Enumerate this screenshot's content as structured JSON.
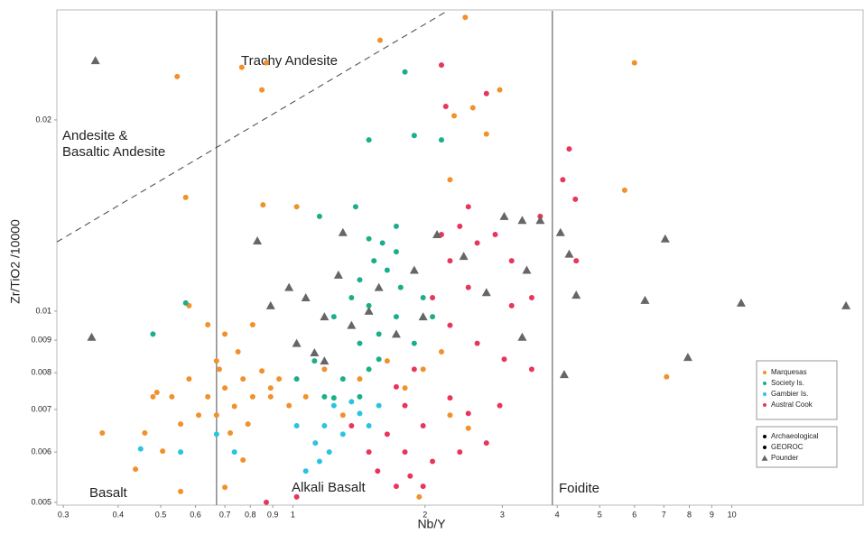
{
  "chart_data": {
    "type": "scatter",
    "x_label": "Nb/Y",
    "y_label": "Zr/TiO2 /10000",
    "xlog": true,
    "ylog": true,
    "xlim": [
      0.29,
      20
    ],
    "ylim": [
      0.00495,
      0.0297
    ],
    "xticks": [
      0.3,
      0.4,
      0.5,
      0.6,
      0.7,
      0.8,
      0.9,
      1,
      2,
      3,
      4,
      5,
      6,
      7,
      8,
      9,
      10
    ],
    "yticks": [
      0.005,
      0.006,
      0.007,
      0.008,
      0.009,
      0.01,
      0.02
    ],
    "region_labels": [
      "Trachy Andesite",
      "Andesite &",
      "Basaltic Andesite",
      "Basalt",
      "Alkali Basalt",
      "Foidite"
    ],
    "reference_lines": [
      {
        "x": [
          0.67,
          0.67
        ],
        "y": [
          0.00495,
          0.0297
        ],
        "dashed": false
      },
      {
        "x": [
          3.9,
          3.9
        ],
        "y": [
          0.00495,
          0.0297
        ],
        "dashed": false
      },
      {
        "x": [
          0.29,
          2.25
        ],
        "y": [
          0.01285,
          0.0297
        ],
        "dashed": true
      }
    ],
    "shape_legend": [
      "Archaeological",
      "GEOROC"
    ],
    "series": [
      {
        "name": "Marquesas",
        "color": "#f0912c",
        "marker": "circle",
        "x": [
          0.545,
          0.765,
          0.87,
          0.85,
          1.58,
          2.47,
          6.0,
          0.57,
          5.7,
          7.1,
          0.855,
          1.02,
          2.33,
          2.57,
          2.96,
          2.76,
          2.28,
          0.7,
          0.77,
          0.736,
          0.81,
          0.89,
          0.64,
          0.61,
          0.58,
          0.67,
          0.75,
          0.85,
          0.93,
          0.67,
          0.72,
          0.555,
          0.53,
          0.505,
          0.46,
          0.438,
          0.48,
          0.64,
          0.7,
          0.81,
          0.98,
          1.07,
          1.18,
          1.42,
          1.64,
          1.8,
          1.98,
          2.18,
          1.3,
          0.77,
          0.7,
          0.555,
          0.368,
          0.49,
          0.58,
          0.89,
          0.68,
          0.79,
          2.51,
          2.28,
          1.94
        ],
        "values": [
          0.0234,
          0.0242,
          0.0246,
          0.0223,
          0.0267,
          0.029,
          0.0246,
          0.0151,
          0.0155,
          0.00788,
          0.0147,
          0.0146,
          0.0203,
          0.0209,
          0.0223,
          0.019,
          0.0161,
          0.00757,
          0.00782,
          0.00708,
          0.00733,
          0.00757,
          0.00733,
          0.00686,
          0.00782,
          0.00835,
          0.00863,
          0.00805,
          0.00782,
          0.00686,
          0.00643,
          0.00664,
          0.00733,
          0.00602,
          0.00643,
          0.00564,
          0.00733,
          0.00952,
          0.0092,
          0.00952,
          0.0071,
          0.00733,
          0.0081,
          0.00782,
          0.00835,
          0.00757,
          0.0081,
          0.00863,
          0.00686,
          0.00583,
          0.00528,
          0.0052,
          0.00643,
          0.00745,
          0.0102,
          0.00733,
          0.0081,
          0.00664,
          0.00654,
          0.00686,
          0.0051
        ]
      },
      {
        "name": "Society Is.",
        "color": "#1aae8a",
        "marker": "circle",
        "x": [
          1.89,
          1.8,
          1.49,
          2.18,
          1.49,
          1.6,
          1.72,
          1.53,
          1.64,
          1.76,
          1.42,
          1.36,
          1.49,
          1.24,
          1.42,
          1.57,
          1.72,
          1.12,
          1.3,
          1.49,
          1.18,
          1.42,
          1.02,
          1.89,
          1.98,
          2.08,
          1.72,
          1.57,
          1.24,
          0.48,
          0.57,
          1.15,
          1.39
        ],
        "values": [
          0.0189,
          0.0238,
          0.0186,
          0.0186,
          0.013,
          0.0128,
          0.0124,
          0.012,
          0.0116,
          0.0109,
          0.0112,
          0.0105,
          0.0102,
          0.0098,
          0.0089,
          0.0092,
          0.0098,
          0.00835,
          0.00782,
          0.0081,
          0.00733,
          0.00733,
          0.00782,
          0.0089,
          0.0105,
          0.0098,
          0.0136,
          0.0084,
          0.0073,
          0.0092,
          0.0103,
          0.0141,
          0.0146
        ]
      },
      {
        "name": "Gambier Is.",
        "color": "#2bc4e0",
        "marker": "circle",
        "x": [
          0.45,
          0.555,
          0.67,
          0.736,
          1.125,
          1.18,
          1.24,
          1.3,
          1.42,
          1.07,
          1.21,
          1.36,
          1.49,
          1.02,
          1.15,
          1.57
        ],
        "values": [
          0.00607,
          0.006,
          0.0064,
          0.006,
          0.0062,
          0.0066,
          0.0071,
          0.0064,
          0.0069,
          0.0056,
          0.006,
          0.0072,
          0.0066,
          0.0066,
          0.0058,
          0.0071
        ]
      },
      {
        "name": "Austral Cook",
        "color": "#e8365a",
        "marker": "circle",
        "x": [
          2.18,
          2.23,
          2.76,
          4.26,
          4.12,
          4.4,
          4.42,
          1.85,
          1.02,
          0.87,
          2.18,
          2.4,
          2.63,
          2.28,
          2.51,
          2.89,
          3.15,
          3.5,
          2.08,
          2.28,
          2.63,
          3.03,
          3.5,
          1.8,
          1.98,
          1.64,
          1.49,
          1.36,
          2.28,
          2.51,
          2.76,
          2.4,
          2.08,
          1.8,
          1.72,
          1.56,
          1.89,
          3.15,
          2.96,
          3.66,
          2.51,
          1.72,
          1.98
        ],
        "values": [
          0.0244,
          0.021,
          0.022,
          0.018,
          0.0161,
          0.015,
          0.012,
          0.0055,
          0.0051,
          0.005,
          0.0132,
          0.0136,
          0.0128,
          0.012,
          0.0109,
          0.0132,
          0.012,
          0.0105,
          0.0105,
          0.0095,
          0.0089,
          0.0084,
          0.0081,
          0.0071,
          0.0066,
          0.0064,
          0.006,
          0.0066,
          0.0073,
          0.0069,
          0.0062,
          0.006,
          0.0058,
          0.006,
          0.0076,
          0.0056,
          0.0081,
          0.0102,
          0.0071,
          0.0141,
          0.0146,
          0.0053,
          0.0053
        ]
      },
      {
        "name": "Pounder",
        "color": "#666666",
        "marker": "triangle",
        "x": [
          0.355,
          0.348,
          0.83,
          1.3,
          0.98,
          0.89,
          1.07,
          1.18,
          1.27,
          1.36,
          1.49,
          1.02,
          1.12,
          1.72,
          1.89,
          2.13,
          2.45,
          3.03,
          3.33,
          3.66,
          3.41,
          2.76,
          3.33,
          4.07,
          4.26,
          4.42,
          4.15,
          6.34,
          7.05,
          7.94,
          10.5,
          18.2,
          1.57,
          1.98,
          1.18
        ],
        "values": [
          0.0248,
          0.0091,
          0.0129,
          0.0133,
          0.0109,
          0.0102,
          0.0105,
          0.0098,
          0.0114,
          0.0095,
          0.01,
          0.0089,
          0.0086,
          0.0092,
          0.0116,
          0.0132,
          0.0122,
          0.0141,
          0.0139,
          0.0139,
          0.0116,
          0.0107,
          0.0091,
          0.0133,
          0.0123,
          0.0106,
          0.00795,
          0.0104,
          0.013,
          0.00846,
          0.0103,
          0.0102,
          0.0109,
          0.0098,
          0.00835
        ]
      }
    ]
  }
}
